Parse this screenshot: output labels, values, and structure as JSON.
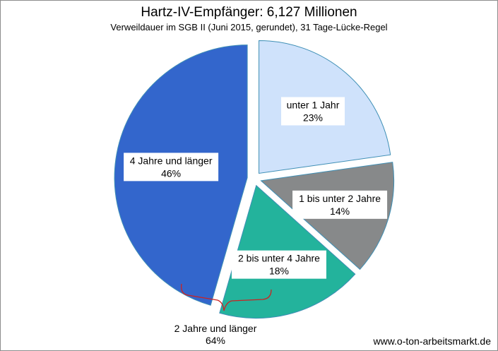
{
  "chart_data": {
    "type": "pie",
    "title": "Hartz-IV-Empfänger: 6,127 Millionen",
    "subtitle": "Verweildauer  im SGB II (Juni 2015, gerundet), 31 Tage-Lücke-Regel",
    "slices": [
      {
        "name": "unter 1 Jahr",
        "value": 23,
        "value_label": "23%",
        "color": "#cfe2fb",
        "stroke": "#3f8fb5"
      },
      {
        "name": "1 bis unter 2 Jahre",
        "value": 14,
        "value_label": "14%",
        "color": "#87898a",
        "stroke": "#3f8fb5"
      },
      {
        "name": "2 bis unter 4 Jahre",
        "value": 18,
        "value_label": "18%",
        "color": "#23b39c",
        "stroke": "#3f8fb5"
      },
      {
        "name": "4 Jahre und länger",
        "value": 46,
        "value_label": "46%",
        "color": "#3366cc",
        "stroke": "#3f8fb5"
      }
    ],
    "annotation": {
      "label": "2 Jahre und länger",
      "value_label": "64%",
      "color": "#cc2222"
    }
  },
  "source": "www.o-ton-arbeitsmarkt.de"
}
